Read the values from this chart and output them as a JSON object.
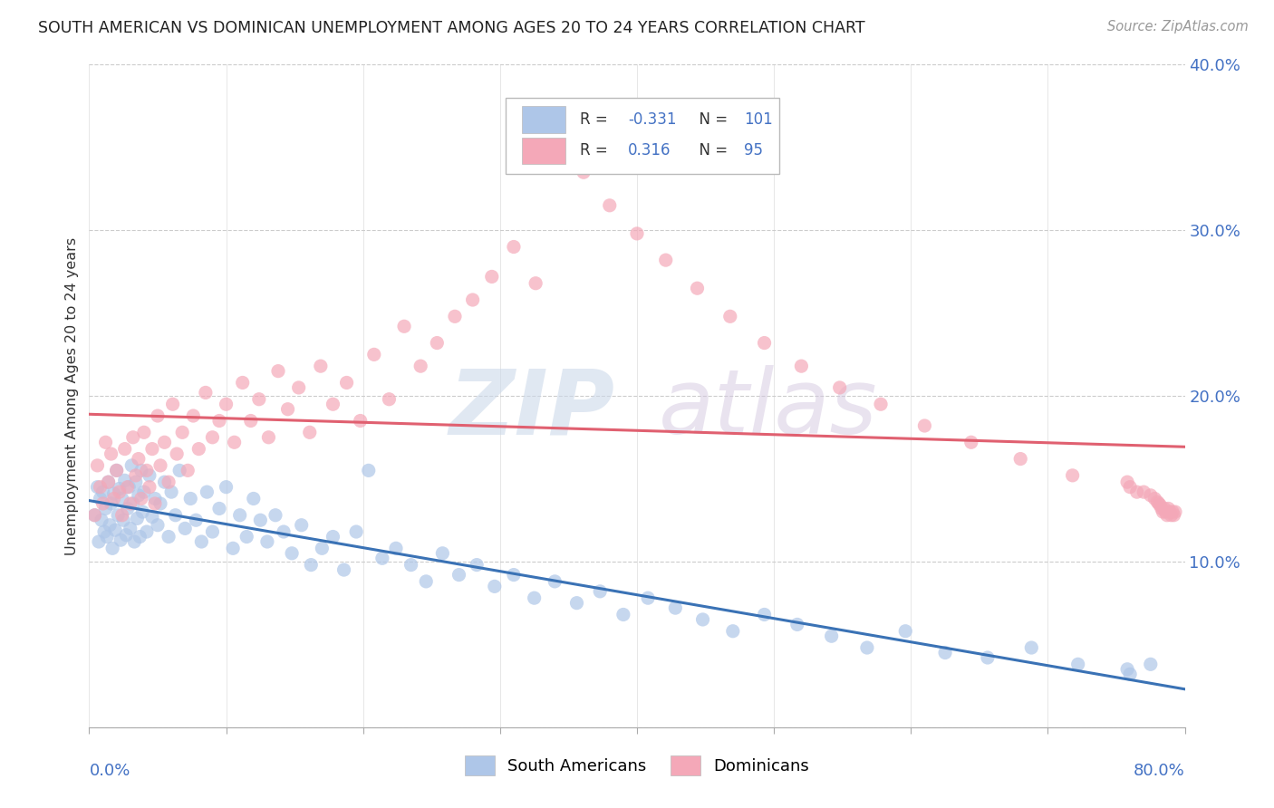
{
  "title": "SOUTH AMERICAN VS DOMINICAN UNEMPLOYMENT AMONG AGES 20 TO 24 YEARS CORRELATION CHART",
  "source": "Source: ZipAtlas.com",
  "ylabel": "Unemployment Among Ages 20 to 24 years",
  "xlim": [
    0.0,
    0.8
  ],
  "ylim": [
    0.0,
    0.4
  ],
  "blue_color": "#aec6e8",
  "pink_color": "#f4a8b8",
  "blue_line_color": "#3a72b5",
  "pink_line_color": "#e06070",
  "blue_r": "-0.331",
  "blue_n": "101",
  "pink_r": "0.316",
  "pink_n": "95",
  "sa_x": [
    0.004,
    0.006,
    0.007,
    0.008,
    0.009,
    0.01,
    0.011,
    0.012,
    0.013,
    0.014,
    0.015,
    0.016,
    0.017,
    0.018,
    0.019,
    0.02,
    0.021,
    0.022,
    0.023,
    0.024,
    0.025,
    0.026,
    0.027,
    0.028,
    0.029,
    0.03,
    0.031,
    0.032,
    0.033,
    0.034,
    0.035,
    0.036,
    0.037,
    0.038,
    0.039,
    0.04,
    0.042,
    0.044,
    0.046,
    0.048,
    0.05,
    0.052,
    0.055,
    0.058,
    0.06,
    0.063,
    0.066,
    0.07,
    0.074,
    0.078,
    0.082,
    0.086,
    0.09,
    0.095,
    0.1,
    0.105,
    0.11,
    0.115,
    0.12,
    0.125,
    0.13,
    0.136,
    0.142,
    0.148,
    0.155,
    0.162,
    0.17,
    0.178,
    0.186,
    0.195,
    0.204,
    0.214,
    0.224,
    0.235,
    0.246,
    0.258,
    0.27,
    0.283,
    0.296,
    0.31,
    0.325,
    0.34,
    0.356,
    0.373,
    0.39,
    0.408,
    0.428,
    0.448,
    0.47,
    0.493,
    0.517,
    0.542,
    0.568,
    0.596,
    0.625,
    0.656,
    0.688,
    0.722,
    0.758,
    0.76,
    0.775
  ],
  "sa_y": [
    0.128,
    0.145,
    0.112,
    0.138,
    0.125,
    0.142,
    0.118,
    0.132,
    0.115,
    0.148,
    0.122,
    0.135,
    0.108,
    0.141,
    0.119,
    0.155,
    0.128,
    0.144,
    0.113,
    0.138,
    0.125,
    0.149,
    0.116,
    0.132,
    0.145,
    0.12,
    0.158,
    0.135,
    0.112,
    0.148,
    0.126,
    0.14,
    0.115,
    0.155,
    0.13,
    0.142,
    0.118,
    0.152,
    0.127,
    0.138,
    0.122,
    0.135,
    0.148,
    0.115,
    0.142,
    0.128,
    0.155,
    0.12,
    0.138,
    0.125,
    0.112,
    0.142,
    0.118,
    0.132,
    0.145,
    0.108,
    0.128,
    0.115,
    0.138,
    0.125,
    0.112,
    0.128,
    0.118,
    0.105,
    0.122,
    0.098,
    0.108,
    0.115,
    0.095,
    0.118,
    0.155,
    0.102,
    0.108,
    0.098,
    0.088,
    0.105,
    0.092,
    0.098,
    0.085,
    0.092,
    0.078,
    0.088,
    0.075,
    0.082,
    0.068,
    0.078,
    0.072,
    0.065,
    0.058,
    0.068,
    0.062,
    0.055,
    0.048,
    0.058,
    0.045,
    0.042,
    0.048,
    0.038,
    0.035,
    0.032,
    0.038
  ],
  "dom_x": [
    0.004,
    0.006,
    0.008,
    0.01,
    0.012,
    0.014,
    0.016,
    0.018,
    0.02,
    0.022,
    0.024,
    0.026,
    0.028,
    0.03,
    0.032,
    0.034,
    0.036,
    0.038,
    0.04,
    0.042,
    0.044,
    0.046,
    0.048,
    0.05,
    0.052,
    0.055,
    0.058,
    0.061,
    0.064,
    0.068,
    0.072,
    0.076,
    0.08,
    0.085,
    0.09,
    0.095,
    0.1,
    0.106,
    0.112,
    0.118,
    0.124,
    0.131,
    0.138,
    0.145,
    0.153,
    0.161,
    0.169,
    0.178,
    0.188,
    0.198,
    0.208,
    0.219,
    0.23,
    0.242,
    0.254,
    0.267,
    0.28,
    0.294,
    0.31,
    0.326,
    0.343,
    0.361,
    0.38,
    0.4,
    0.421,
    0.444,
    0.468,
    0.493,
    0.52,
    0.548,
    0.578,
    0.61,
    0.644,
    0.68,
    0.718,
    0.758,
    0.76,
    0.765,
    0.77,
    0.775,
    0.778,
    0.78,
    0.781,
    0.782,
    0.783,
    0.784,
    0.785,
    0.786,
    0.787,
    0.788,
    0.789,
    0.79,
    0.791,
    0.792,
    0.793
  ],
  "dom_y": [
    0.128,
    0.158,
    0.145,
    0.135,
    0.172,
    0.148,
    0.165,
    0.138,
    0.155,
    0.142,
    0.128,
    0.168,
    0.145,
    0.135,
    0.175,
    0.152,
    0.162,
    0.138,
    0.178,
    0.155,
    0.145,
    0.168,
    0.135,
    0.188,
    0.158,
    0.172,
    0.148,
    0.195,
    0.165,
    0.178,
    0.155,
    0.188,
    0.168,
    0.202,
    0.175,
    0.185,
    0.195,
    0.172,
    0.208,
    0.185,
    0.198,
    0.175,
    0.215,
    0.192,
    0.205,
    0.178,
    0.218,
    0.195,
    0.208,
    0.185,
    0.225,
    0.198,
    0.242,
    0.218,
    0.232,
    0.248,
    0.258,
    0.272,
    0.29,
    0.268,
    0.35,
    0.335,
    0.315,
    0.298,
    0.282,
    0.265,
    0.248,
    0.232,
    0.218,
    0.205,
    0.195,
    0.182,
    0.172,
    0.162,
    0.152,
    0.148,
    0.145,
    0.142,
    0.142,
    0.14,
    0.138,
    0.136,
    0.135,
    0.134,
    0.132,
    0.13,
    0.132,
    0.13,
    0.128,
    0.132,
    0.13,
    0.128,
    0.13,
    0.128,
    0.13
  ]
}
